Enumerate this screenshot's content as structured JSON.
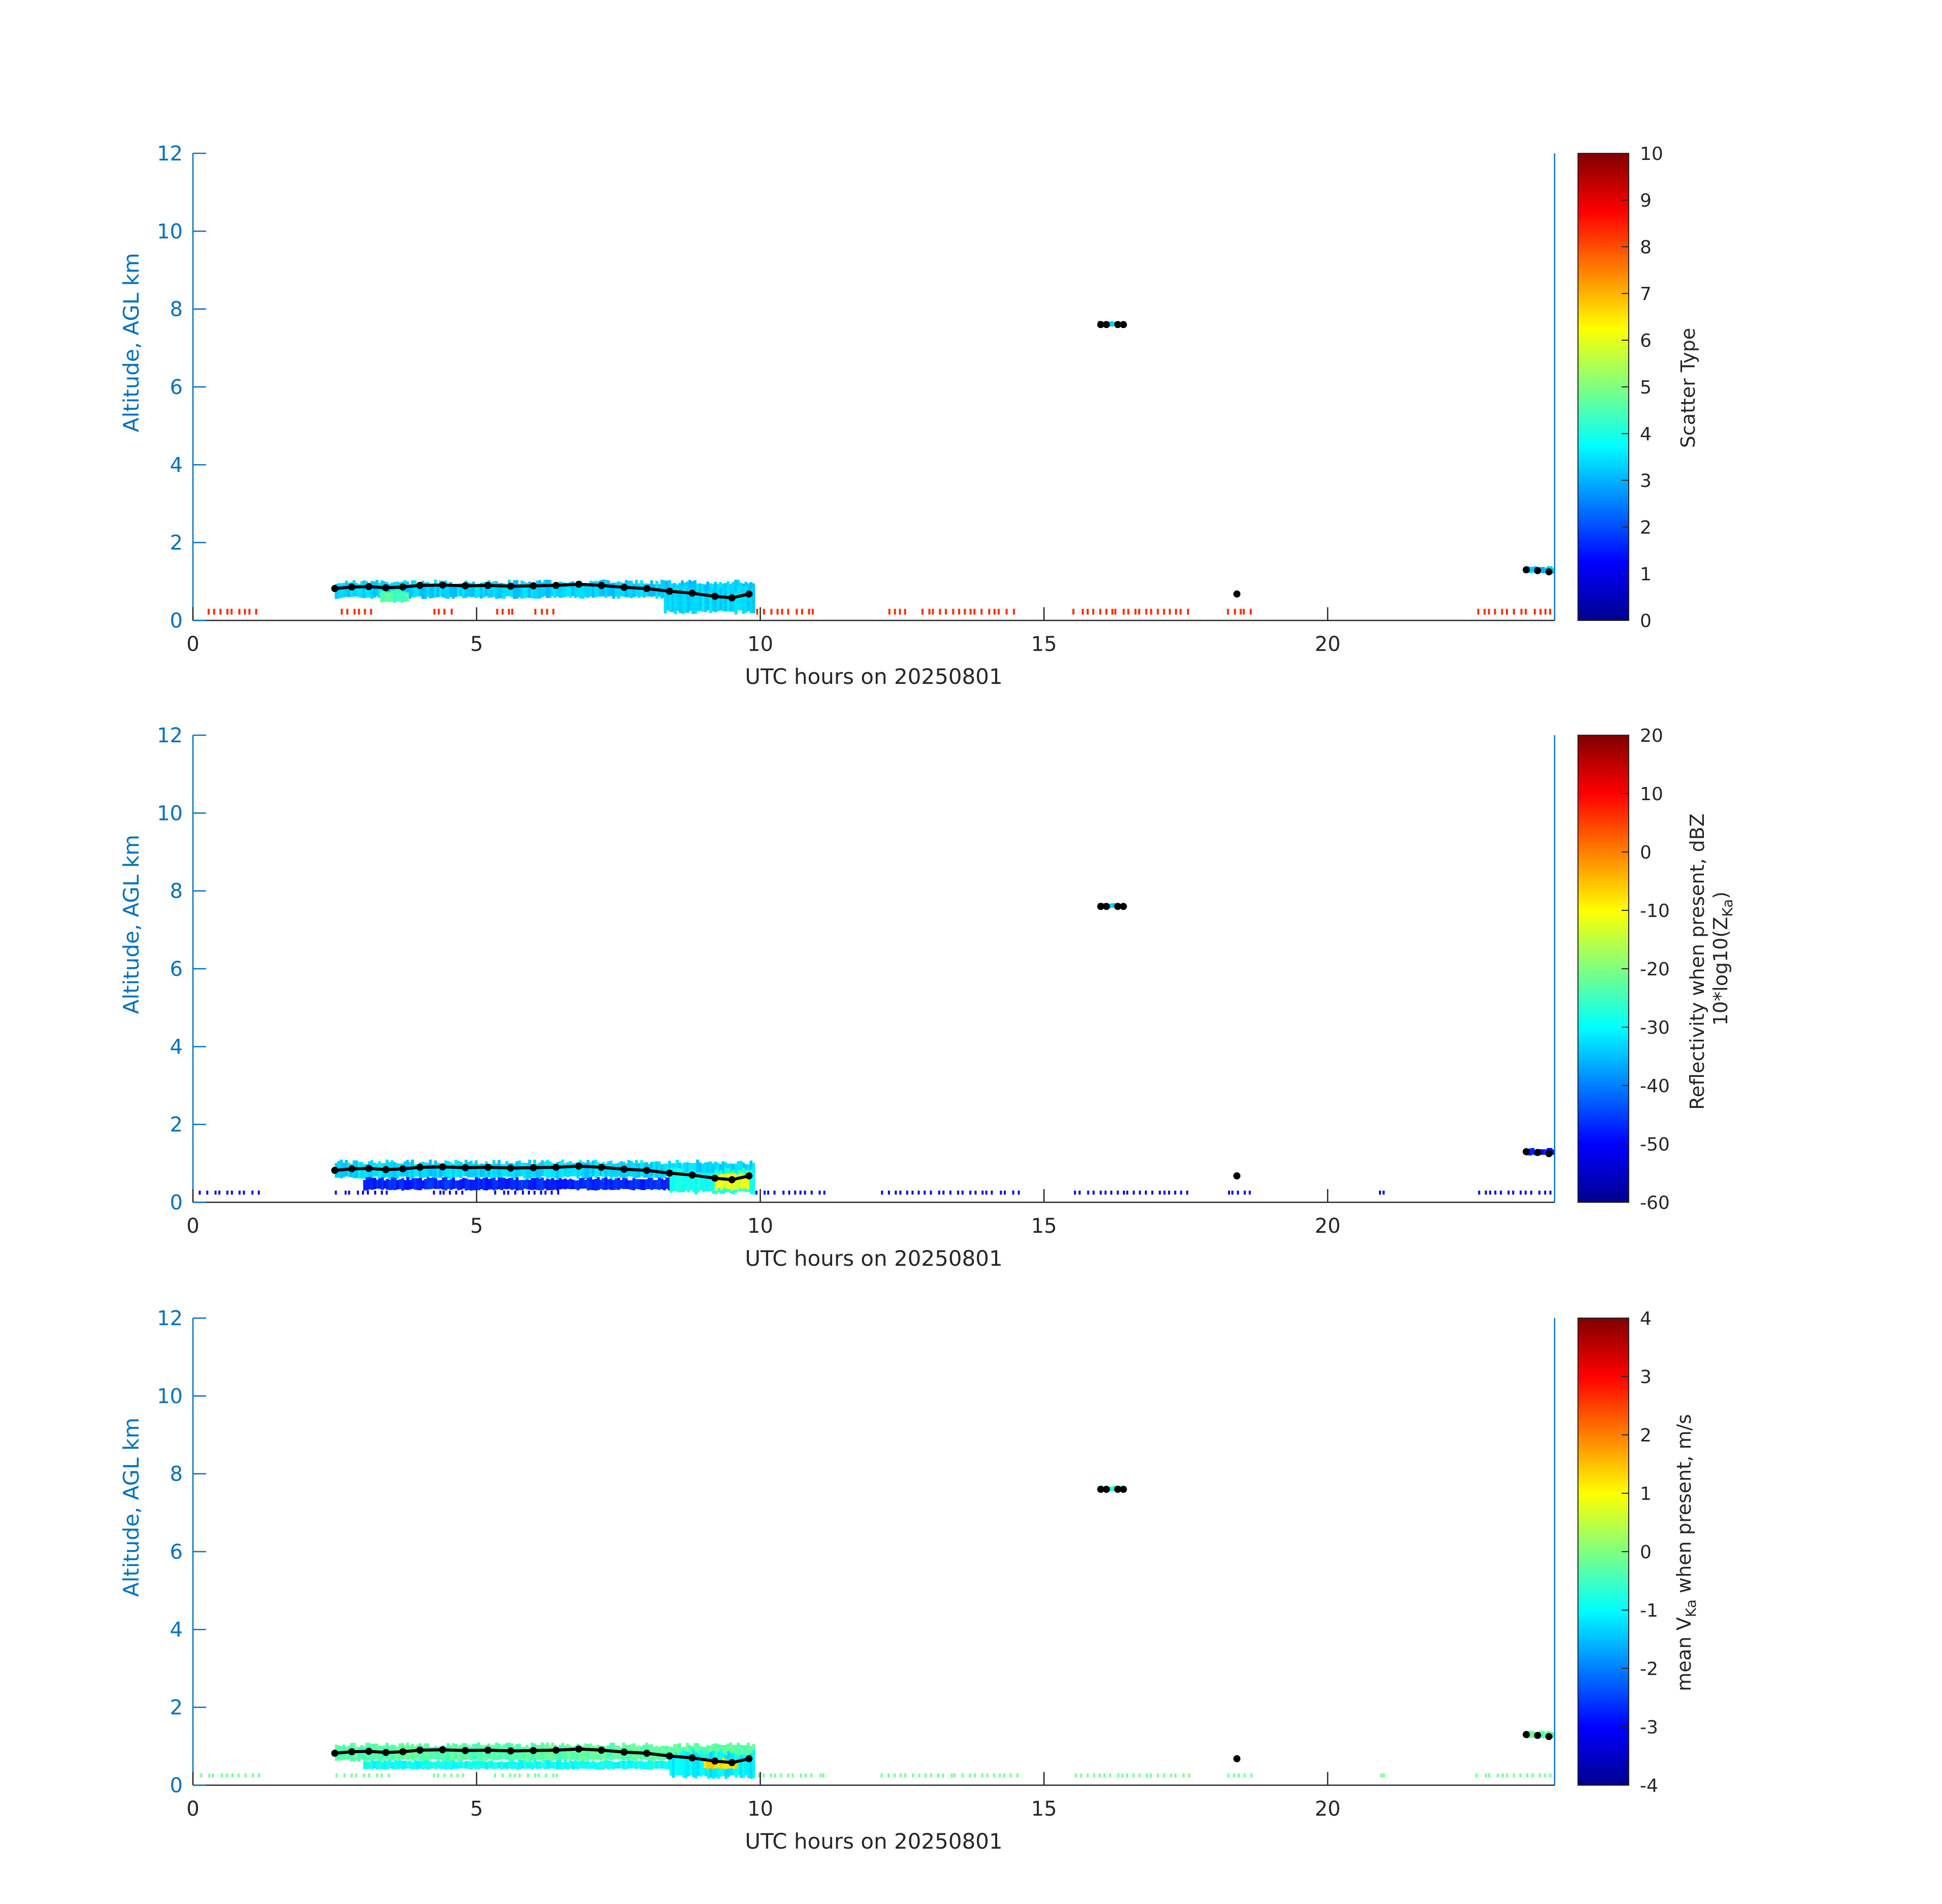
{
  "chart_data": [
    {
      "type": "heatmap",
      "title": "",
      "xlabel": "UTC hours on 20250801",
      "ylabel": "Altitude, AGL km",
      "xlim": [
        0,
        24
      ],
      "ylim": [
        0,
        12
      ],
      "xticks": [
        "0",
        "5",
        "10",
        "15",
        "20"
      ],
      "yticks": [
        "0",
        "2",
        "4",
        "6",
        "8",
        "10",
        "12"
      ],
      "colorbar": {
        "label_lines": [
          "Scatter Type"
        ],
        "range": [
          0,
          10
        ],
        "ticks": [
          "0",
          "1",
          "2",
          "3",
          "4",
          "5",
          "6",
          "7",
          "8",
          "9",
          "10"
        ],
        "colormap": "jet"
      },
      "layers": [
        {
          "kind": "band",
          "x0": 2.5,
          "x1": 9.9,
          "y0": 0.55,
          "y1": 1.05,
          "value": 3.3
        },
        {
          "kind": "band",
          "x0": 8.3,
          "x1": 9.9,
          "y0": 0.15,
          "y1": 0.9,
          "value": 3.4
        },
        {
          "kind": "band",
          "x0": 3.3,
          "x1": 3.8,
          "y0": 0.45,
          "y1": 0.8,
          "value": 4.5
        },
        {
          "kind": "band",
          "x0": 15.95,
          "x1": 16.35,
          "y0": 7.55,
          "y1": 7.7,
          "value": 3.3
        },
        {
          "kind": "band",
          "x0": 23.5,
          "x1": 24.0,
          "y0": 1.2,
          "y1": 1.4,
          "value": 3.2
        },
        {
          "kind": "surface",
          "y0": 0.15,
          "y1": 0.3,
          "value": 8.3,
          "segments": [
            [
              0.2,
              1.2
            ],
            [
              2.6,
              3.2
            ],
            [
              4.2,
              4.6
            ],
            [
              5.3,
              5.7
            ],
            [
              6.0,
              6.4
            ],
            [
              9.9,
              11.0
            ],
            [
              12.2,
              12.6
            ],
            [
              12.8,
              14.5
            ],
            [
              15.5,
              17.6
            ],
            [
              18.2,
              18.7
            ],
            [
              22.6,
              24.0
            ]
          ],
          "dense": [
            [
              12.9,
              14.4
            ],
            [
              15.6,
              17.6
            ]
          ]
        }
      ],
      "cloud_base": {
        "x": [
          2.5,
          2.8,
          3.1,
          3.4,
          3.7,
          4.0,
          4.4,
          4.8,
          5.2,
          5.6,
          6.0,
          6.4,
          6.8,
          7.2,
          7.6,
          8.0,
          8.4,
          8.8,
          9.2,
          9.5,
          9.8,
          16.0,
          16.1,
          16.3,
          16.4,
          18.4,
          23.5,
          23.7,
          23.9
        ],
        "y": [
          0.82,
          0.86,
          0.87,
          0.84,
          0.86,
          0.9,
          0.91,
          0.89,
          0.9,
          0.88,
          0.89,
          0.9,
          0.93,
          0.9,
          0.85,
          0.82,
          0.75,
          0.7,
          0.62,
          0.58,
          0.68,
          7.6,
          7.6,
          7.6,
          7.6,
          0.68,
          1.3,
          1.28,
          1.25
        ]
      }
    },
    {
      "type": "heatmap",
      "title": "",
      "xlabel": "UTC hours on 20250801",
      "ylabel": "Altitude, AGL km",
      "xlim": [
        0,
        24
      ],
      "ylim": [
        0,
        12
      ],
      "xticks": [
        "0",
        "5",
        "10",
        "15",
        "20"
      ],
      "yticks": [
        "0",
        "2",
        "4",
        "6",
        "8",
        "10",
        "12"
      ],
      "colorbar": {
        "label_lines": [
          "Reflectivity when present, dBZ",
          "10*log10(Z",
          "Ka",
          ")"
        ],
        "range": [
          -60,
          20
        ],
        "ticks": [
          "-60",
          "-50",
          "-40",
          "-30",
          "-20",
          "-10",
          "0",
          "10",
          "20"
        ],
        "colormap": "jet"
      },
      "layers": [
        {
          "kind": "band",
          "x0": 2.5,
          "x1": 9.9,
          "y0": 0.6,
          "y1": 1.1,
          "value": -33
        },
        {
          "kind": "band",
          "x0": 3.0,
          "x1": 9.0,
          "y0": 0.3,
          "y1": 0.65,
          "value": -47
        },
        {
          "kind": "band",
          "x0": 8.4,
          "x1": 9.9,
          "y0": 0.2,
          "y1": 0.9,
          "value": -28
        },
        {
          "kind": "band",
          "x0": 9.2,
          "x1": 9.8,
          "y0": 0.3,
          "y1": 0.8,
          "value": -12
        },
        {
          "kind": "band",
          "x0": 15.95,
          "x1": 16.35,
          "y0": 7.55,
          "y1": 7.7,
          "value": -35
        },
        {
          "kind": "band",
          "x0": 23.5,
          "x1": 24.0,
          "y0": 1.2,
          "y1": 1.4,
          "value": -48
        },
        {
          "kind": "surface",
          "y0": 0.2,
          "y1": 0.3,
          "value": -51,
          "segments": [
            [
              0.1,
              1.2
            ],
            [
              2.5,
              3.5
            ],
            [
              4.2,
              4.8
            ],
            [
              5.3,
              6.5
            ],
            [
              9.9,
              11.2
            ],
            [
              12.1,
              14.6
            ],
            [
              15.5,
              17.6
            ],
            [
              18.2,
              18.7
            ],
            [
              20.9,
              21.0
            ],
            [
              22.6,
              24.0
            ]
          ],
          "dense": [
            [
              12.9,
              14.4
            ],
            [
              15.6,
              17.6
            ]
          ]
        }
      ],
      "cloud_base": {
        "x": [
          2.5,
          2.8,
          3.1,
          3.4,
          3.7,
          4.0,
          4.4,
          4.8,
          5.2,
          5.6,
          6.0,
          6.4,
          6.8,
          7.2,
          7.6,
          8.0,
          8.4,
          8.8,
          9.2,
          9.5,
          9.8,
          16.0,
          16.1,
          16.3,
          16.4,
          18.4,
          23.5,
          23.7,
          23.9
        ],
        "y": [
          0.82,
          0.86,
          0.87,
          0.84,
          0.86,
          0.9,
          0.91,
          0.89,
          0.9,
          0.88,
          0.89,
          0.9,
          0.93,
          0.9,
          0.85,
          0.82,
          0.75,
          0.7,
          0.62,
          0.58,
          0.68,
          7.6,
          7.6,
          7.6,
          7.6,
          0.68,
          1.3,
          1.28,
          1.25
        ]
      }
    },
    {
      "type": "heatmap",
      "title": "",
      "xlabel": "UTC hours on 20250801",
      "ylabel": "Altitude, AGL km",
      "xlim": [
        0,
        24
      ],
      "ylim": [
        0,
        12
      ],
      "xticks": [
        "0",
        "5",
        "10",
        "15",
        "20"
      ],
      "yticks": [
        "0",
        "2",
        "4",
        "6",
        "8",
        "10",
        "12"
      ],
      "colorbar": {
        "label_lines": [
          "mean V",
          "Ka",
          " when present, m/s"
        ],
        "range": [
          -4,
          4
        ],
        "ticks": [
          "-4",
          "-3",
          "-2",
          "-1",
          "0",
          "1",
          "2",
          "3",
          "4"
        ],
        "colormap": "jet"
      },
      "layers": [
        {
          "kind": "band",
          "x0": 2.5,
          "x1": 9.9,
          "y0": 0.6,
          "y1": 1.1,
          "value": -0.3
        },
        {
          "kind": "band",
          "x0": 3.0,
          "x1": 9.0,
          "y0": 0.4,
          "y1": 0.65,
          "value": -0.9
        },
        {
          "kind": "band",
          "x0": 8.4,
          "x1": 9.9,
          "y0": 0.15,
          "y1": 0.9,
          "value": -1.1
        },
        {
          "kind": "band",
          "x0": 9.0,
          "x1": 9.6,
          "y0": 0.4,
          "y1": 0.7,
          "value": 1.3
        },
        {
          "kind": "band",
          "x0": 15.95,
          "x1": 16.35,
          "y0": 7.55,
          "y1": 7.7,
          "value": -0.6
        },
        {
          "kind": "band",
          "x0": 23.5,
          "x1": 24.0,
          "y0": 1.2,
          "y1": 1.4,
          "value": -0.2
        },
        {
          "kind": "surface",
          "y0": 0.2,
          "y1": 0.3,
          "value": -0.1,
          "segments": [
            [
              0.1,
              1.2
            ],
            [
              2.5,
              3.5
            ],
            [
              4.2,
              4.8
            ],
            [
              5.3,
              6.5
            ],
            [
              9.9,
              11.2
            ],
            [
              12.1,
              14.6
            ],
            [
              15.5,
              17.6
            ],
            [
              18.2,
              18.7
            ],
            [
              20.9,
              21.0
            ],
            [
              22.6,
              24.0
            ]
          ],
          "dense": [
            [
              12.9,
              14.4
            ],
            [
              15.6,
              17.6
            ]
          ]
        }
      ],
      "cloud_base": {
        "x": [
          2.5,
          2.8,
          3.1,
          3.4,
          3.7,
          4.0,
          4.4,
          4.8,
          5.2,
          5.6,
          6.0,
          6.4,
          6.8,
          7.2,
          7.6,
          8.0,
          8.4,
          8.8,
          9.2,
          9.5,
          9.8,
          16.0,
          16.1,
          16.3,
          16.4,
          18.4,
          23.5,
          23.7,
          23.9
        ],
        "y": [
          0.82,
          0.86,
          0.87,
          0.84,
          0.86,
          0.9,
          0.91,
          0.89,
          0.9,
          0.88,
          0.89,
          0.9,
          0.93,
          0.9,
          0.85,
          0.82,
          0.75,
          0.7,
          0.62,
          0.58,
          0.68,
          7.6,
          7.6,
          7.6,
          7.6,
          0.68,
          1.3,
          1.28,
          1.25
        ]
      }
    }
  ]
}
